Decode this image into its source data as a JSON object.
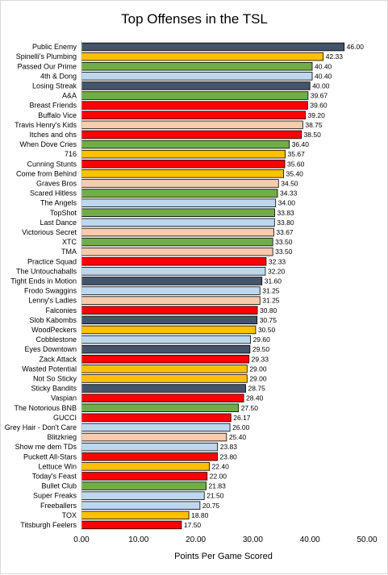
{
  "chart_data": {
    "type": "bar",
    "orientation": "horizontal",
    "title": "Top Offenses in the TSL",
    "xlabel": "Points Per Game Scored",
    "ylabel": "",
    "xlim": [
      0,
      50
    ],
    "xticks": [
      "0.00",
      "10.00",
      "20.00",
      "30.00",
      "40.00",
      "50.00"
    ],
    "grid": false,
    "legend": "none",
    "colors": {
      "navy": "#44546A",
      "gold": "#FFC000",
      "green": "#70AD47",
      "lightblue": "#BDD7EE",
      "red": "#FF0000",
      "peach": "#F8CBAD"
    },
    "categories": [
      "Public Enemy",
      "Spinelli's Plumbing",
      "Passed Our Prime",
      "4th & Dong",
      "Losing Streak",
      "A&A",
      "Breast Friends",
      "Buffalo Vice",
      "Travis Henry's Kids",
      "Itches and ohs",
      "When Dove Cries",
      "716",
      "Cunning Stunts",
      "Come from Behind",
      "Graves Bros",
      "Scared Hitless",
      "The Angels",
      "TopShot",
      "Last Dance",
      "Victorious Secret",
      "XTC",
      "TMA",
      "Practice Squad",
      "The Untouchaballs",
      "Tight Ends in Motion",
      "Frodo Swaggins",
      "Lenny's Ladies",
      "Falconies",
      "Slob Kabombs",
      "WoodPeckers",
      "Cobblestone",
      "Eyes Downtown",
      "Zack Attack",
      "Wasted Potential",
      "Not So Sticky",
      "Sticky Bandits",
      "Vaspian",
      "The Notorious BNB",
      "GUCCI",
      "Grey Hair - Don't Care",
      "Blitzkrieg",
      "Show me dem TDs",
      "Puckett All-Stars",
      "Lettuce Win",
      "Today's Feast",
      "Bullet Club",
      "Super Freaks",
      "Freeballers",
      "TOX",
      "Titsburgh Feelers"
    ],
    "values": [
      46.0,
      42.33,
      40.4,
      40.4,
      40.0,
      39.67,
      39.6,
      39.2,
      38.75,
      38.5,
      36.4,
      35.67,
      35.6,
      35.4,
      34.5,
      34.33,
      34.0,
      33.83,
      33.8,
      33.67,
      33.5,
      33.5,
      32.33,
      32.2,
      31.6,
      31.25,
      31.25,
      30.8,
      30.75,
      30.5,
      29.6,
      29.5,
      29.33,
      29.0,
      29.0,
      28.75,
      28.4,
      27.5,
      26.17,
      26.0,
      25.4,
      23.83,
      23.8,
      22.4,
      22.0,
      21.83,
      21.5,
      20.75,
      18.8,
      17.5
    ],
    "value_labels": [
      "46.00",
      "42.33",
      "40.40",
      "40.40",
      "40.00",
      "39.67",
      "39.60",
      "39.20",
      "38.75",
      "38.50",
      "36.40",
      "35.67",
      "35.60",
      "35.40",
      "34.50",
      "34.33",
      "34.00",
      "33.83",
      "33.80",
      "33.67",
      "33.50",
      "33.50",
      "32.33",
      "32.20",
      "31.60",
      "31.25",
      "31.25",
      "30.80",
      "30.75",
      "30.50",
      "29.60",
      "29.50",
      "29.33",
      "29.00",
      "29.00",
      "28.75",
      "28.40",
      "27.50",
      "26.17",
      "26.00",
      "25.40",
      "23.83",
      "23.80",
      "22.40",
      "22.00",
      "21.83",
      "21.50",
      "20.75",
      "18.80",
      "17.50"
    ],
    "bar_colors": [
      "#44546A",
      "#FFC000",
      "#70AD47",
      "#BDD7EE",
      "#44546A",
      "#70AD47",
      "#FF0000",
      "#FF0000",
      "#F8CBAD",
      "#FF0000",
      "#70AD47",
      "#FFC000",
      "#FF0000",
      "#FFC000",
      "#F8CBAD",
      "#70AD47",
      "#BDD7EE",
      "#70AD47",
      "#BDD7EE",
      "#F8CBAD",
      "#70AD47",
      "#F8CBAD",
      "#FF0000",
      "#BDD7EE",
      "#44546A",
      "#BDD7EE",
      "#F8CBAD",
      "#FF0000",
      "#44546A",
      "#FFC000",
      "#BDD7EE",
      "#44546A",
      "#FF0000",
      "#FFC000",
      "#FFC000",
      "#44546A",
      "#FF0000",
      "#70AD47",
      "#FF0000",
      "#BDD7EE",
      "#F8CBAD",
      "#BDD7EE",
      "#FF0000",
      "#FFC000",
      "#FF0000",
      "#70AD47",
      "#BDD7EE",
      "#BDD7EE",
      "#FFC000",
      "#FF0000"
    ]
  }
}
